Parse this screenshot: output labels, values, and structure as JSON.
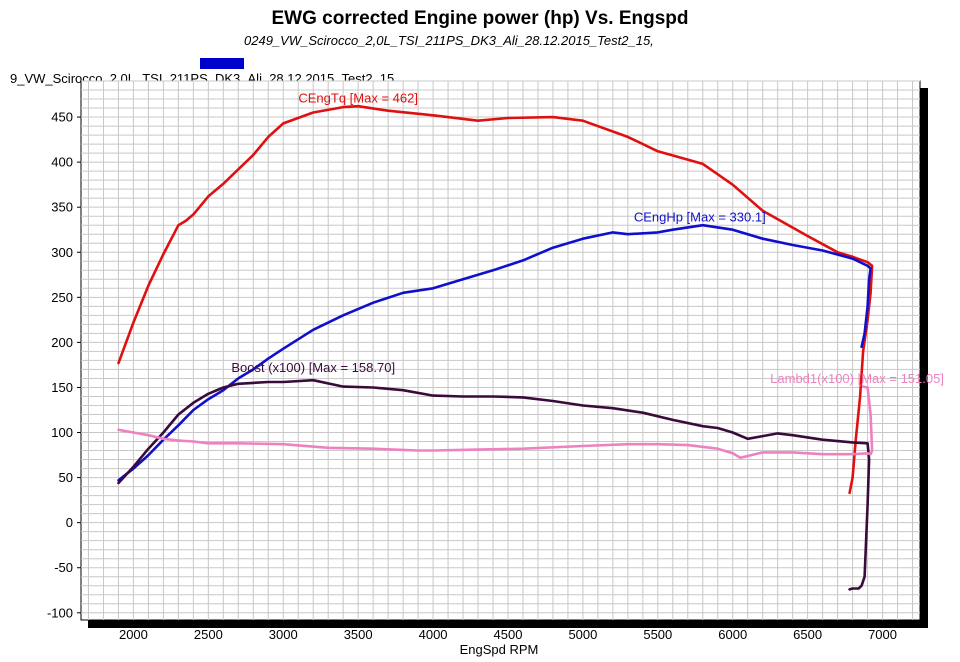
{
  "chart_data": {
    "type": "line",
    "title": "EWG corrected Engine power (hp) Vs. Engspd",
    "subtitle": "0249_VW_Scirocco_2,0L_TSI_211PS_DK3_Ali_28.12.2015_Test2_15,",
    "legend_label": "9_VW_Scirocco_2,0L_TSI_211PS_DK3_Ali_28.12.2015_Test2_15",
    "legend_color": "#0000cc",
    "xlabel": "EngSpd RPM",
    "ylabel": "",
    "xlim": [
      1650,
      7250
    ],
    "ylim": [
      -108,
      490
    ],
    "x_ticks": [
      2000,
      2500,
      3000,
      3500,
      4000,
      4500,
      5000,
      5500,
      6000,
      6500,
      7000
    ],
    "y_ticks": [
      -100,
      -50,
      0,
      50,
      100,
      150,
      200,
      250,
      300,
      350,
      400,
      450
    ],
    "x_grid_step": 100,
    "y_grid_step": 10,
    "grid": true,
    "series": [
      {
        "name": "CEngTq",
        "color": "#e01010",
        "label": "CEngTq [Max = 462]",
        "label_at": [
          3500,
          466
        ],
        "x": [
          1900,
          2000,
          2100,
          2200,
          2300,
          2350,
          2400,
          2500,
          2600,
          2700,
          2800,
          2900,
          3000,
          3200,
          3400,
          3500,
          3700,
          4000,
          4300,
          4500,
          4800,
          5000,
          5300,
          5500,
          5800,
          6000,
          6200,
          6500,
          6700,
          6800,
          6900,
          6930,
          6920,
          6900,
          6870,
          6850,
          6820,
          6800,
          6780
        ],
        "values": [
          177,
          222,
          263,
          298,
          330,
          335,
          342,
          362,
          376,
          392,
          408,
          428,
          443,
          455,
          461,
          462,
          457,
          452,
          446,
          449,
          450,
          446,
          428,
          412,
          398,
          375,
          346,
          318,
          300,
          295,
          289,
          285,
          255,
          225,
          190,
          140,
          90,
          50,
          33
        ]
      },
      {
        "name": "CEngHp",
        "color": "#1010cc",
        "label": "CEngHp [Max = 330.1]",
        "label_at": [
          5780,
          334
        ],
        "x": [
          1900,
          2000,
          2100,
          2200,
          2300,
          2400,
          2500,
          2600,
          2700,
          2800,
          2900,
          3000,
          3200,
          3400,
          3600,
          3800,
          4000,
          4200,
          4400,
          4600,
          4800,
          5000,
          5200,
          5300,
          5500,
          5600,
          5800,
          6000,
          6200,
          6400,
          6600,
          6800,
          6900,
          6920,
          6910,
          6900,
          6880,
          6860
        ],
        "values": [
          47,
          60,
          75,
          92,
          108,
          125,
          137,
          147,
          160,
          170,
          182,
          193,
          214,
          230,
          244,
          255,
          260,
          270,
          280,
          291,
          305,
          315,
          322,
          320,
          322,
          325,
          330,
          325,
          315,
          308,
          302,
          293,
          285,
          282,
          270,
          240,
          210,
          195
        ]
      },
      {
        "name": "Boost (x100)",
        "color": "#3a0a3a",
        "label": "Boost (x100) [Max = 158.70]",
        "label_at": [
          3200,
          167
        ],
        "x": [
          1900,
          2000,
          2100,
          2200,
          2300,
          2400,
          2500,
          2600,
          2700,
          2800,
          2900,
          3000,
          3200,
          3400,
          3600,
          3800,
          4000,
          4200,
          4400,
          4600,
          4800,
          5000,
          5200,
          5400,
          5600,
          5800,
          5900,
          6000,
          6100,
          6200,
          6300,
          6400,
          6600,
          6800,
          6900,
          6910,
          6900,
          6880,
          6860,
          6840,
          6820,
          6800,
          6780
        ],
        "values": [
          44,
          62,
          82,
          100,
          120,
          133,
          143,
          150,
          154,
          155,
          156,
          156,
          158,
          151,
          150,
          147,
          141,
          140,
          140,
          139,
          135,
          130,
          127,
          122,
          114,
          107,
          105,
          100,
          93,
          96,
          99,
          97,
          92,
          89,
          88,
          70,
          20,
          -60,
          -70,
          -73,
          -73,
          -73,
          -74
        ]
      },
      {
        "name": "Lambd1(x100)",
        "color": "#ee82c0",
        "label": "Lambd1(x100) [Max = 151.05]",
        "label_at": [
          6830,
          155
        ],
        "x": [
          1900,
          2000,
          2100,
          2200,
          2300,
          2400,
          2500,
          2700,
          3000,
          3300,
          3600,
          3900,
          4000,
          4300,
          4600,
          5000,
          5300,
          5500,
          5700,
          5900,
          6000,
          6050,
          6100,
          6200,
          6400,
          6600,
          6800,
          6900,
          6920,
          6930,
          6920,
          6900,
          6870
        ],
        "values": [
          103,
          100,
          97,
          93,
          91,
          90,
          88,
          88,
          87,
          83,
          82,
          80,
          80,
          81,
          82,
          85,
          87,
          87,
          86,
          82,
          77,
          72,
          74,
          78,
          78,
          76,
          76,
          77,
          76,
          80,
          120,
          150,
          151
        ]
      }
    ]
  }
}
